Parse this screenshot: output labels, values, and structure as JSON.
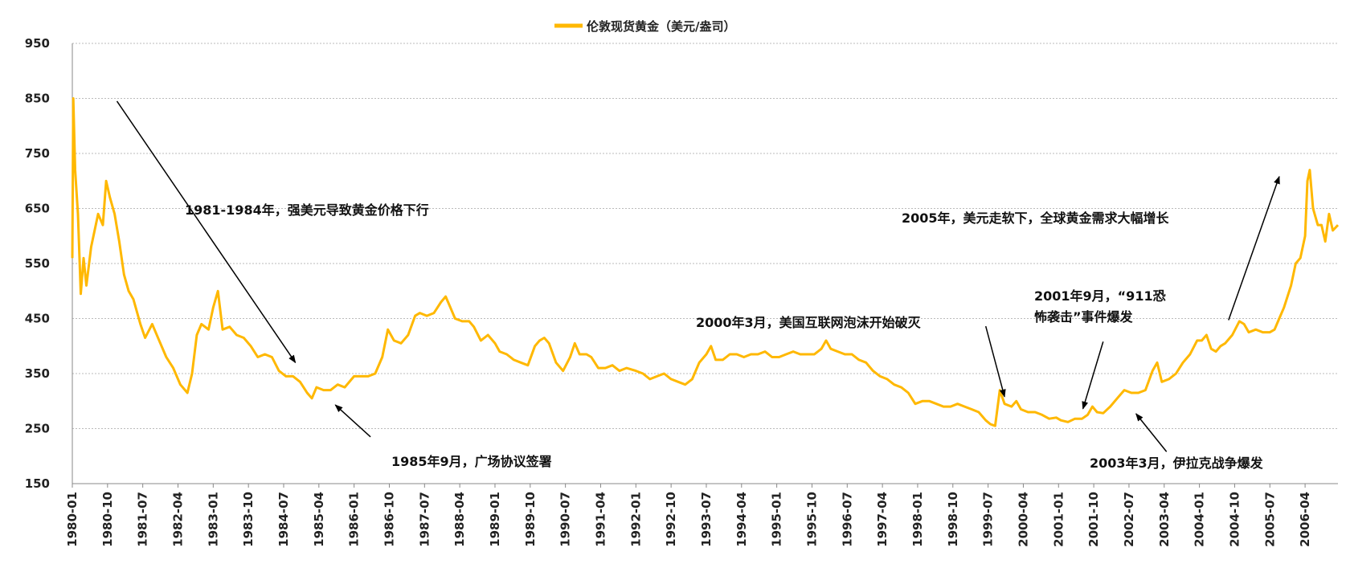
{
  "colors": {
    "series": "#FFB800",
    "grid": "#bbbbbb",
    "axis": "#888888",
    "arrow": "#000000"
  },
  "chart_data": {
    "type": "line",
    "title": "",
    "xlabel": "",
    "ylabel": "",
    "ylim": [
      150,
      950
    ],
    "yticks": [
      "150",
      "250",
      "350",
      "450",
      "550",
      "650",
      "750",
      "850",
      "950"
    ],
    "xlim": [
      1980.0,
      2006.95
    ],
    "xticks": [
      "1980-01",
      "1980-10",
      "1981-07",
      "1982-04",
      "1983-01",
      "1983-10",
      "1984-07",
      "1985-04",
      "1986-01",
      "1986-10",
      "1987-07",
      "1988-04",
      "1989-01",
      "1989-10",
      "1990-07",
      "1991-04",
      "1992-01",
      "1992-10",
      "1993-07",
      "1994-04",
      "1995-01",
      "1995-10",
      "1996-07",
      "1997-04",
      "1998-01",
      "1998-10",
      "1999-07",
      "2000-04",
      "2001-01",
      "2001-10",
      "2002-07",
      "2003-04",
      "2004-01",
      "2004-10",
      "2005-07",
      "2006-04"
    ],
    "legend": {
      "position": "top-center",
      "label": "伦敦现货黄金（美元/盎司）"
    },
    "grid": true,
    "series": [
      {
        "name": "伦敦现货黄金（美元/盎司）",
        "points": [
          [
            1980.0,
            560
          ],
          [
            1980.02,
            850
          ],
          [
            1980.06,
            720
          ],
          [
            1980.12,
            640
          ],
          [
            1980.18,
            495
          ],
          [
            1980.24,
            560
          ],
          [
            1980.3,
            510
          ],
          [
            1980.4,
            580
          ],
          [
            1980.55,
            640
          ],
          [
            1980.65,
            620
          ],
          [
            1980.72,
            700
          ],
          [
            1980.8,
            670
          ],
          [
            1980.9,
            640
          ],
          [
            1981.0,
            590
          ],
          [
            1981.1,
            530
          ],
          [
            1981.2,
            500
          ],
          [
            1981.3,
            485
          ],
          [
            1981.45,
            440
          ],
          [
            1981.55,
            415
          ],
          [
            1981.7,
            440
          ],
          [
            1981.85,
            410
          ],
          [
            1982.0,
            380
          ],
          [
            1982.15,
            360
          ],
          [
            1982.3,
            330
          ],
          [
            1982.45,
            315
          ],
          [
            1982.55,
            350
          ],
          [
            1982.65,
            420
          ],
          [
            1982.75,
            440
          ],
          [
            1982.9,
            430
          ],
          [
            1983.0,
            470
          ],
          [
            1983.1,
            500
          ],
          [
            1983.2,
            430
          ],
          [
            1983.35,
            435
          ],
          [
            1983.5,
            420
          ],
          [
            1983.65,
            415
          ],
          [
            1983.8,
            400
          ],
          [
            1983.95,
            380
          ],
          [
            1984.1,
            385
          ],
          [
            1984.25,
            380
          ],
          [
            1984.4,
            355
          ],
          [
            1984.55,
            345
          ],
          [
            1984.7,
            345
          ],
          [
            1984.85,
            335
          ],
          [
            1985.0,
            315
          ],
          [
            1985.1,
            305
          ],
          [
            1985.2,
            325
          ],
          [
            1985.35,
            320
          ],
          [
            1985.5,
            320
          ],
          [
            1985.65,
            330
          ],
          [
            1985.8,
            325
          ],
          [
            1986.0,
            345
          ],
          [
            1986.15,
            345
          ],
          [
            1986.3,
            345
          ],
          [
            1986.45,
            350
          ],
          [
            1986.6,
            380
          ],
          [
            1986.72,
            430
          ],
          [
            1986.85,
            410
          ],
          [
            1987.0,
            405
          ],
          [
            1987.15,
            420
          ],
          [
            1987.3,
            455
          ],
          [
            1987.4,
            460
          ],
          [
            1987.55,
            455
          ],
          [
            1987.7,
            460
          ],
          [
            1987.85,
            480
          ],
          [
            1987.95,
            490
          ],
          [
            1988.05,
            470
          ],
          [
            1988.15,
            450
          ],
          [
            1988.3,
            445
          ],
          [
            1988.45,
            445
          ],
          [
            1988.55,
            435
          ],
          [
            1988.7,
            410
          ],
          [
            1988.85,
            420
          ],
          [
            1989.0,
            405
          ],
          [
            1989.1,
            390
          ],
          [
            1989.25,
            385
          ],
          [
            1989.4,
            375
          ],
          [
            1989.55,
            370
          ],
          [
            1989.7,
            365
          ],
          [
            1989.85,
            400
          ],
          [
            1989.95,
            410
          ],
          [
            1990.05,
            415
          ],
          [
            1990.15,
            405
          ],
          [
            1990.3,
            370
          ],
          [
            1990.45,
            355
          ],
          [
            1990.6,
            380
          ],
          [
            1990.7,
            405
          ],
          [
            1990.8,
            385
          ],
          [
            1990.95,
            385
          ],
          [
            1991.05,
            380
          ],
          [
            1991.2,
            360
          ],
          [
            1991.35,
            360
          ],
          [
            1991.5,
            365
          ],
          [
            1991.65,
            355
          ],
          [
            1991.8,
            360
          ],
          [
            1992.0,
            355
          ],
          [
            1992.15,
            350
          ],
          [
            1992.3,
            340
          ],
          [
            1992.45,
            345
          ],
          [
            1992.6,
            350
          ],
          [
            1992.75,
            340
          ],
          [
            1992.9,
            335
          ],
          [
            1993.05,
            330
          ],
          [
            1993.2,
            340
          ],
          [
            1993.35,
            370
          ],
          [
            1993.5,
            385
          ],
          [
            1993.6,
            400
          ],
          [
            1993.7,
            375
          ],
          [
            1993.85,
            375
          ],
          [
            1994.0,
            385
          ],
          [
            1994.15,
            385
          ],
          [
            1994.3,
            380
          ],
          [
            1994.45,
            385
          ],
          [
            1994.6,
            385
          ],
          [
            1994.75,
            390
          ],
          [
            1994.9,
            380
          ],
          [
            1995.05,
            380
          ],
          [
            1995.2,
            385
          ],
          [
            1995.35,
            390
          ],
          [
            1995.5,
            385
          ],
          [
            1995.65,
            385
          ],
          [
            1995.8,
            385
          ],
          [
            1995.95,
            395
          ],
          [
            1996.05,
            410
          ],
          [
            1996.15,
            395
          ],
          [
            1996.3,
            390
          ],
          [
            1996.45,
            385
          ],
          [
            1996.6,
            385
          ],
          [
            1996.75,
            375
          ],
          [
            1996.9,
            370
          ],
          [
            1997.05,
            355
          ],
          [
            1997.2,
            345
          ],
          [
            1997.35,
            340
          ],
          [
            1997.5,
            330
          ],
          [
            1997.65,
            325
          ],
          [
            1997.8,
            315
          ],
          [
            1997.95,
            295
          ],
          [
            1998.1,
            300
          ],
          [
            1998.25,
            300
          ],
          [
            1998.4,
            295
          ],
          [
            1998.55,
            290
          ],
          [
            1998.7,
            290
          ],
          [
            1998.85,
            295
          ],
          [
            1999.0,
            290
          ],
          [
            1999.15,
            285
          ],
          [
            1999.3,
            280
          ],
          [
            1999.45,
            265
          ],
          [
            1999.55,
            258
          ],
          [
            1999.65,
            255
          ],
          [
            1999.75,
            320
          ],
          [
            1999.85,
            295
          ],
          [
            2000.0,
            290
          ],
          [
            2000.1,
            300
          ],
          [
            2000.2,
            285
          ],
          [
            2000.35,
            280
          ],
          [
            2000.5,
            280
          ],
          [
            2000.65,
            275
          ],
          [
            2000.8,
            268
          ],
          [
            2000.95,
            270
          ],
          [
            2001.05,
            265
          ],
          [
            2001.2,
            262
          ],
          [
            2001.35,
            268
          ],
          [
            2001.5,
            268
          ],
          [
            2001.62,
            275
          ],
          [
            2001.72,
            290
          ],
          [
            2001.82,
            280
          ],
          [
            2001.95,
            278
          ],
          [
            2002.1,
            290
          ],
          [
            2002.25,
            305
          ],
          [
            2002.4,
            320
          ],
          [
            2002.55,
            315
          ],
          [
            2002.7,
            315
          ],
          [
            2002.85,
            320
          ],
          [
            2003.0,
            355
          ],
          [
            2003.1,
            370
          ],
          [
            2003.2,
            335
          ],
          [
            2003.35,
            340
          ],
          [
            2003.5,
            350
          ],
          [
            2003.65,
            370
          ],
          [
            2003.8,
            385
          ],
          [
            2003.95,
            410
          ],
          [
            2004.05,
            410
          ],
          [
            2004.15,
            420
          ],
          [
            2004.25,
            395
          ],
          [
            2004.35,
            390
          ],
          [
            2004.45,
            400
          ],
          [
            2004.55,
            405
          ],
          [
            2004.7,
            420
          ],
          [
            2004.85,
            445
          ],
          [
            2004.95,
            440
          ],
          [
            2005.05,
            425
          ],
          [
            2005.2,
            430
          ],
          [
            2005.35,
            425
          ],
          [
            2005.5,
            425
          ],
          [
            2005.6,
            430
          ],
          [
            2005.7,
            450
          ],
          [
            2005.8,
            470
          ],
          [
            2005.95,
            510
          ],
          [
            2006.05,
            550
          ],
          [
            2006.15,
            560
          ],
          [
            2006.25,
            600
          ],
          [
            2006.3,
            700
          ],
          [
            2006.35,
            720
          ],
          [
            2006.42,
            650
          ],
          [
            2006.52,
            620
          ],
          [
            2006.6,
            620
          ],
          [
            2006.68,
            590
          ],
          [
            2006.76,
            640
          ],
          [
            2006.84,
            610
          ],
          [
            2006.95,
            620
          ]
        ]
      }
    ],
    "annotations": [
      {
        "id": "ann-1981",
        "text": "1981-1984年，强美元导致黄金价格下行",
        "arrow_from": [
          1980.95,
          845
        ],
        "arrow_to": [
          1984.75,
          370
        ]
      },
      {
        "id": "ann-1985",
        "text": "1985年9月，广场协议签署",
        "arrow_from": [
          1986.35,
          235
        ],
        "arrow_to": [
          1985.6,
          293
        ]
      },
      {
        "id": "ann-2000",
        "text": "2000年3月，美国互联网泡沫开始破灭",
        "arrow_from": [
          1999.45,
          436
        ],
        "arrow_to": [
          1999.85,
          308
        ]
      },
      {
        "id": "ann-2001",
        "text_lines": [
          "2001年9月，“911恐",
          "怖袭击”事件爆发"
        ],
        "arrow_from": [
          2001.95,
          408
        ],
        "arrow_to": [
          2001.52,
          286
        ]
      },
      {
        "id": "ann-2003",
        "text": "2003年3月，伊拉克战争爆发",
        "arrow_from": [
          2003.3,
          208
        ],
        "arrow_to": [
          2002.65,
          277
        ]
      },
      {
        "id": "ann-2005",
        "text": "2005年，美元走软下，全球黄金需求大幅增长",
        "arrow_from": [
          2004.62,
          447
        ],
        "arrow_to": [
          2005.7,
          708
        ]
      }
    ]
  }
}
